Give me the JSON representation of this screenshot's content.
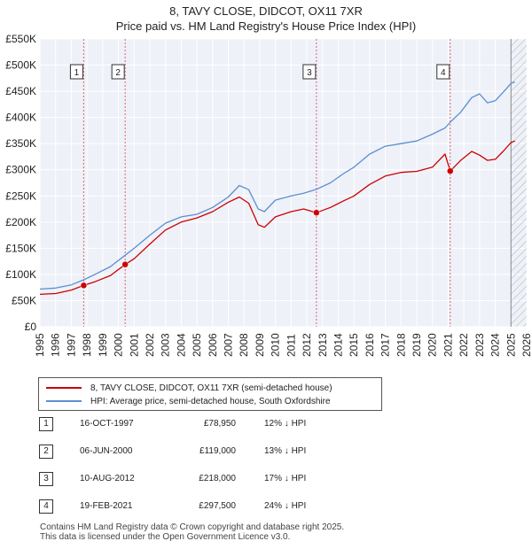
{
  "chart_data": {
    "type": "line",
    "title": "8, TAVY CLOSE, DIDCOT, OX11 7XR",
    "subtitle": "Price paid vs. HM Land Registry's House Price Index (HPI)",
    "xlim": [
      1995,
      2026
    ],
    "ylim": [
      0,
      550000
    ],
    "y_ticks": [
      0,
      50000,
      100000,
      150000,
      200000,
      250000,
      300000,
      350000,
      400000,
      450000,
      500000,
      550000
    ],
    "y_tick_labels": [
      "£0",
      "£50K",
      "£100K",
      "£150K",
      "£200K",
      "£250K",
      "£300K",
      "£350K",
      "£400K",
      "£450K",
      "£500K",
      "£550K"
    ],
    "x_ticks": [
      1995,
      1996,
      1997,
      1998,
      1999,
      2000,
      2001,
      2002,
      2003,
      2004,
      2005,
      2006,
      2007,
      2008,
      2009,
      2010,
      2011,
      2012,
      2013,
      2014,
      2015,
      2016,
      2017,
      2018,
      2019,
      2020,
      2021,
      2022,
      2023,
      2024,
      2025,
      2026
    ],
    "future_shading_from": 2025.0,
    "series": [
      {
        "name": "8, TAVY CLOSE, DIDCOT, OX11 7XR (semi-detached house)",
        "color": "#cc0000",
        "points": [
          [
            1995.0,
            62000
          ],
          [
            1996.0,
            63500
          ],
          [
            1997.0,
            70000
          ],
          [
            1997.79,
            78950
          ],
          [
            1998.5,
            86000
          ],
          [
            1999.5,
            98000
          ],
          [
            2000.43,
            119000
          ],
          [
            2001.0,
            130000
          ],
          [
            2002.0,
            158000
          ],
          [
            2003.0,
            185000
          ],
          [
            2004.0,
            200000
          ],
          [
            2005.0,
            208000
          ],
          [
            2006.0,
            220000
          ],
          [
            2007.0,
            238000
          ],
          [
            2007.7,
            248000
          ],
          [
            2008.3,
            236000
          ],
          [
            2008.9,
            195000
          ],
          [
            2009.3,
            190000
          ],
          [
            2010.0,
            210000
          ],
          [
            2011.0,
            220000
          ],
          [
            2011.8,
            225000
          ],
          [
            2012.61,
            218000
          ],
          [
            2013.5,
            228000
          ],
          [
            2014.3,
            240000
          ],
          [
            2015.0,
            250000
          ],
          [
            2016.0,
            272000
          ],
          [
            2017.0,
            288000
          ],
          [
            2018.0,
            295000
          ],
          [
            2019.0,
            297000
          ],
          [
            2020.0,
            305000
          ],
          [
            2020.8,
            330000
          ],
          [
            2021.13,
            297500
          ],
          [
            2021.8,
            318000
          ],
          [
            2022.5,
            335000
          ],
          [
            2023.0,
            328000
          ],
          [
            2023.5,
            318000
          ],
          [
            2024.0,
            320000
          ],
          [
            2024.5,
            335000
          ],
          [
            2025.0,
            352000
          ],
          [
            2025.25,
            355000
          ]
        ]
      },
      {
        "name": "HPI: Average price, semi-detached house, South Oxfordshire",
        "color": "#5b8fd1",
        "points": [
          [
            1995.0,
            72000
          ],
          [
            1996.0,
            74000
          ],
          [
            1997.0,
            80000
          ],
          [
            1997.79,
            89700
          ],
          [
            1998.5,
            100000
          ],
          [
            1999.5,
            115000
          ],
          [
            2000.43,
            136800
          ],
          [
            2001.0,
            150000
          ],
          [
            2002.0,
            175000
          ],
          [
            2003.0,
            198000
          ],
          [
            2004.0,
            210000
          ],
          [
            2005.0,
            215000
          ],
          [
            2006.0,
            228000
          ],
          [
            2007.0,
            248000
          ],
          [
            2007.7,
            270000
          ],
          [
            2008.3,
            262000
          ],
          [
            2008.9,
            225000
          ],
          [
            2009.3,
            220000
          ],
          [
            2010.0,
            242000
          ],
          [
            2011.0,
            250000
          ],
          [
            2011.8,
            255000
          ],
          [
            2012.61,
            262700
          ],
          [
            2013.5,
            275000
          ],
          [
            2014.3,
            292000
          ],
          [
            2015.0,
            305000
          ],
          [
            2016.0,
            330000
          ],
          [
            2017.0,
            345000
          ],
          [
            2018.0,
            350000
          ],
          [
            2019.0,
            355000
          ],
          [
            2020.0,
            368000
          ],
          [
            2020.8,
            380000
          ],
          [
            2021.13,
            391000
          ],
          [
            2021.8,
            410000
          ],
          [
            2022.5,
            438000
          ],
          [
            2023.0,
            445000
          ],
          [
            2023.5,
            428000
          ],
          [
            2024.0,
            432000
          ],
          [
            2024.5,
            448000
          ],
          [
            2025.0,
            465000
          ],
          [
            2025.25,
            468000
          ]
        ]
      }
    ],
    "sales": [
      {
        "num": "1",
        "date": "16-OCT-1997",
        "year": 1997.79,
        "price": 78950,
        "price_label": "£78,950",
        "hpi": "12% ↓ HPI"
      },
      {
        "num": "2",
        "date": "06-JUN-2000",
        "year": 2000.43,
        "price": 119000,
        "price_label": "£119,000",
        "hpi": "13% ↓ HPI"
      },
      {
        "num": "3",
        "date": "10-AUG-2012",
        "year": 2012.61,
        "price": 218000,
        "price_label": "£218,000",
        "hpi": "17% ↓ HPI"
      },
      {
        "num": "4",
        "date": "19-FEB-2021",
        "year": 2021.13,
        "price": 297500,
        "price_label": "£297,500",
        "hpi": "24% ↓ HPI"
      }
    ]
  },
  "legend": {
    "property_label": "8, TAVY CLOSE, DIDCOT, OX11 7XR (semi-detached house)",
    "hpi_label": "HPI: Average price, semi-detached house, South Oxfordshire",
    "property_color": "#cc0000",
    "hpi_color": "#5b8fd1"
  },
  "footer": {
    "line1": "Contains HM Land Registry data © Crown copyright and database right 2025.",
    "line2": "This data is licensed under the Open Government Licence v3.0."
  }
}
